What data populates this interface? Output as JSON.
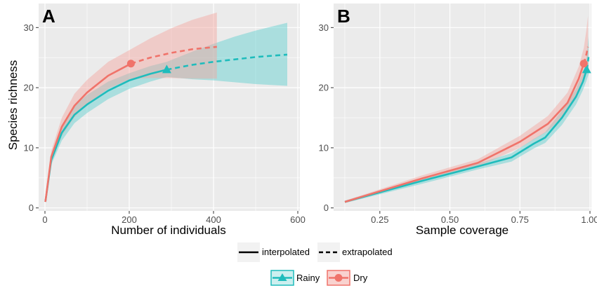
{
  "colors": {
    "rainy": "#1fbcbc",
    "dry": "#f0736a",
    "rainy_band": "#5ccfcf",
    "dry_band": "#f4a39e",
    "panel_bg": "#ebebeb",
    "grid": "#ffffff"
  },
  "chart_data": [
    {
      "panel_label": "A",
      "type": "line",
      "xlabel": "Number of individuals",
      "ylabel": "Species richness",
      "xlim": [
        -15,
        605
      ],
      "ylim": [
        -0.5,
        34
      ],
      "xticks": [
        0,
        200,
        400,
        600
      ],
      "yticks": [
        0,
        10,
        20,
        30
      ],
      "grid": true,
      "series": [
        {
          "name": "Rainy",
          "marker": "triangle",
          "interpolated": [
            [
              1,
              1
            ],
            [
              15,
              8
            ],
            [
              40,
              12.5
            ],
            [
              70,
              15.5
            ],
            [
              100,
              17.2
            ],
            [
              150,
              19.5
            ],
            [
              200,
              21.2
            ],
            [
              250,
              22.3
            ],
            [
              289,
              23
            ]
          ],
          "extrapolated": [
            [
              289,
              23
            ],
            [
              350,
              23.8
            ],
            [
              400,
              24.3
            ],
            [
              450,
              24.7
            ],
            [
              500,
              25.1
            ],
            [
              575,
              25.5
            ]
          ],
          "band_upper": [
            [
              1,
              1.1
            ],
            [
              15,
              8.8
            ],
            [
              40,
              13.8
            ],
            [
              70,
              17
            ],
            [
              100,
              18.8
            ],
            [
              150,
              21
            ],
            [
              200,
              22.4
            ],
            [
              250,
              23.6
            ],
            [
              289,
              24.3
            ],
            [
              350,
              26
            ],
            [
              400,
              27.3
            ],
            [
              450,
              28.5
            ],
            [
              500,
              29.5
            ],
            [
              575,
              30.8
            ]
          ],
          "band_lower": [
            [
              1,
              0.9
            ],
            [
              15,
              7.2
            ],
            [
              40,
              11.2
            ],
            [
              70,
              14.1
            ],
            [
              100,
              15.8
            ],
            [
              150,
              18.1
            ],
            [
              200,
              19.8
            ],
            [
              250,
              21
            ],
            [
              289,
              21.8
            ],
            [
              350,
              21.4
            ],
            [
              400,
              21.2
            ],
            [
              450,
              20.9
            ],
            [
              500,
              20.6
            ],
            [
              575,
              20.3
            ]
          ],
          "observed": [
            289,
            23
          ]
        },
        {
          "name": "Dry",
          "marker": "circle",
          "interpolated": [
            [
              1,
              1
            ],
            [
              15,
              8.5
            ],
            [
              40,
              13.5
            ],
            [
              70,
              17
            ],
            [
              100,
              19.2
            ],
            [
              150,
              22
            ],
            [
              204,
              24
            ]
          ],
          "extrapolated": [
            [
              204,
              24
            ],
            [
              250,
              25
            ],
            [
              300,
              25.8
            ],
            [
              350,
              26.4
            ],
            [
              408,
              26.8
            ]
          ],
          "band_upper": [
            [
              1,
              1.1
            ],
            [
              15,
              9.5
            ],
            [
              40,
              15
            ],
            [
              70,
              19
            ],
            [
              100,
              21.3
            ],
            [
              150,
              24.3
            ],
            [
              204,
              26.4
            ],
            [
              250,
              28.2
            ],
            [
              300,
              29.9
            ],
            [
              350,
              31.3
            ],
            [
              408,
              32.5
            ]
          ],
          "band_lower": [
            [
              1,
              0.9
            ],
            [
              15,
              7.6
            ],
            [
              40,
              12
            ],
            [
              70,
              15.1
            ],
            [
              100,
              17.3
            ],
            [
              150,
              19.8
            ],
            [
              204,
              21.5
            ],
            [
              250,
              21.6
            ],
            [
              300,
              21.6
            ],
            [
              350,
              21.5
            ],
            [
              408,
              21.5
            ]
          ],
          "observed": [
            204,
            24
          ]
        }
      ]
    },
    {
      "panel_label": "B",
      "type": "line",
      "xlabel": "Sample coverage",
      "ylabel": "",
      "xlim": [
        0.085,
        1.005
      ],
      "ylim": [
        -0.5,
        34
      ],
      "xticks": [
        0.25,
        0.5,
        0.75,
        1.0
      ],
      "xtick_labels": [
        "0.25",
        "0.50",
        "0.75",
        "1.00"
      ],
      "yticks": [
        0,
        10,
        20,
        30
      ],
      "grid": true,
      "series": [
        {
          "name": "Rainy",
          "marker": "triangle",
          "interpolated": [
            [
              0.125,
              1
            ],
            [
              0.4,
              4.5
            ],
            [
              0.6,
              6.9
            ],
            [
              0.72,
              8.4
            ],
            [
              0.8,
              10.7
            ],
            [
              0.84,
              11.7
            ],
            [
              0.9,
              15
            ],
            [
              0.95,
              18.5
            ],
            [
              0.975,
              21
            ],
            [
              0.988,
              23
            ]
          ],
          "extrapolated": [
            [
              0.988,
              23
            ],
            [
              0.992,
              24
            ],
            [
              0.995,
              25.1
            ]
          ],
          "band_upper": [
            [
              0.125,
              1.2
            ],
            [
              0.4,
              5
            ],
            [
              0.6,
              7.4
            ],
            [
              0.72,
              9.1
            ],
            [
              0.8,
              11.5
            ],
            [
              0.84,
              12.6
            ],
            [
              0.9,
              16.2
            ],
            [
              0.95,
              19.8
            ],
            [
              0.975,
              22.5
            ],
            [
              0.988,
              25
            ],
            [
              0.995,
              28.5
            ]
          ],
          "band_lower": [
            [
              0.125,
              0.8
            ],
            [
              0.4,
              4
            ],
            [
              0.6,
              6.4
            ],
            [
              0.72,
              7.7
            ],
            [
              0.8,
              9.9
            ],
            [
              0.84,
              10.8
            ],
            [
              0.9,
              13.8
            ],
            [
              0.95,
              17.2
            ],
            [
              0.975,
              19.6
            ],
            [
              0.988,
              21.2
            ],
            [
              0.995,
              22.2
            ]
          ],
          "observed": [
            0.988,
            23
          ]
        },
        {
          "name": "Dry",
          "marker": "circle",
          "interpolated": [
            [
              0.125,
              1
            ],
            [
              0.4,
              4.9
            ],
            [
              0.6,
              7.5
            ],
            [
              0.75,
              11
            ],
            [
              0.85,
              14
            ],
            [
              0.92,
              17.5
            ],
            [
              0.96,
              21.5
            ],
            [
              0.978,
              24
            ]
          ],
          "extrapolated": [
            [
              0.978,
              24
            ],
            [
              0.987,
              25.5
            ],
            [
              0.993,
              26.8
            ]
          ],
          "band_upper": [
            [
              0.125,
              1.2
            ],
            [
              0.4,
              5.4
            ],
            [
              0.6,
              8.1
            ],
            [
              0.75,
              12
            ],
            [
              0.85,
              15.3
            ],
            [
              0.92,
              19.2
            ],
            [
              0.96,
              23.5
            ],
            [
              0.978,
              26.6
            ],
            [
              0.987,
              29.5
            ],
            [
              0.993,
              32
            ]
          ],
          "band_lower": [
            [
              0.125,
              0.8
            ],
            [
              0.4,
              4.4
            ],
            [
              0.6,
              6.9
            ],
            [
              0.75,
              10
            ],
            [
              0.85,
              12.8
            ],
            [
              0.92,
              16
            ],
            [
              0.96,
              19.6
            ],
            [
              0.978,
              21.8
            ],
            [
              0.987,
              22.8
            ],
            [
              0.993,
              23.4
            ]
          ],
          "observed": [
            0.978,
            24
          ]
        }
      ]
    }
  ],
  "legend": {
    "linetype_items": [
      "interpolated",
      "extrapolated"
    ],
    "group_items": [
      "Rainy",
      "Dry"
    ]
  }
}
